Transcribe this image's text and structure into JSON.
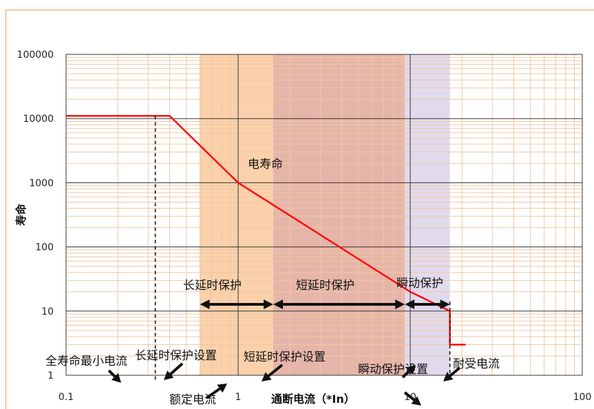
{
  "chart_data": {
    "type": "line",
    "xlabel": "通断电流（*In）",
    "ylabel": "寿命",
    "x_scale": "log",
    "y_scale": "log",
    "xlim": [
      0.1,
      100
    ],
    "ylim": [
      1,
      100000
    ],
    "x_ticks": [
      "0.1",
      "1",
      "10",
      "100"
    ],
    "y_ticks": [
      "1",
      "10",
      "100",
      "1000",
      "10000",
      "100000"
    ],
    "grid": true,
    "series": [
      {
        "name": "电寿命",
        "color": "#ff0000",
        "x": [
          0.1,
          0.4,
          1,
          10,
          17,
          17,
          21
        ],
        "y": [
          11000,
          11000,
          1000,
          20,
          10,
          3,
          3
        ]
      }
    ],
    "regions": [
      {
        "label": "长延时保护",
        "x": [
          0.6,
          1.6
        ],
        "color": "#f9c99c"
      },
      {
        "label": "短延时保护",
        "x": [
          1.6,
          9.3
        ],
        "color": "#e2a89b"
      },
      {
        "label": "瞬动保护",
        "x": [
          9.3,
          17
        ],
        "color": "#dcd4ea"
      }
    ],
    "range_arrows": [
      {
        "label": "长延时保护",
        "x": [
          0.6,
          1.6
        ],
        "y": 12
      },
      {
        "label": "短延时保护",
        "x": [
          1.6,
          9.3
        ],
        "y": 12
      },
      {
        "label": "瞬动保护",
        "x": [
          9.3,
          17
        ],
        "y": 12
      }
    ],
    "annotations": [
      {
        "text": "电寿命"
      },
      {
        "text": "全寿命最小电流"
      },
      {
        "text": "长延时保护设置"
      },
      {
        "text": "额定电流"
      },
      {
        "text": "短延时保护设置"
      },
      {
        "text": "瞬动保护设置"
      },
      {
        "text": "耐受电流"
      }
    ]
  }
}
